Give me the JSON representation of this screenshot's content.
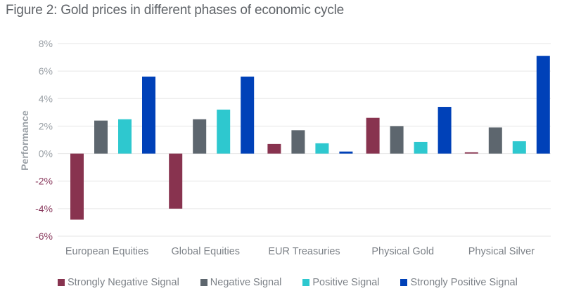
{
  "chart_data": {
    "type": "bar",
    "title": "Figure 2: Gold prices in different phases of economic cycle",
    "xlabel": "",
    "ylabel": "Performance",
    "ylim": [
      -6,
      8
    ],
    "yticks": [
      8,
      6,
      4,
      2,
      0,
      -2,
      -4,
      -6
    ],
    "ytick_labels": [
      "8%",
      "6%",
      "4%",
      "2%",
      "0%",
      "-2%",
      "-4%",
      "-6%"
    ],
    "grid": true,
    "legend_position": "bottom",
    "categories": [
      "European Equities",
      "Global Equities",
      "EUR Treasuries",
      "Physical Gold",
      "Physical Silver"
    ],
    "series": [
      {
        "name": "Strongly Negative Signal",
        "color": "#88334f",
        "values": [
          -4.8,
          -4.0,
          0.7,
          2.6,
          0.1
        ]
      },
      {
        "name": "Negative Signal",
        "color": "#5d666e",
        "values": [
          2.4,
          2.5,
          1.7,
          2.0,
          1.9
        ]
      },
      {
        "name": "Positive Signal",
        "color": "#2ec8cf",
        "values": [
          2.5,
          3.2,
          0.75,
          0.85,
          0.9
        ]
      },
      {
        "name": "Strongly Positive Signal",
        "color": "#0041b8",
        "values": [
          5.6,
          5.6,
          0.15,
          3.4,
          7.1
        ]
      }
    ]
  },
  "colors": {
    "negative_tick": "#8a3a5e",
    "positive_tick": "#9aa0a6",
    "grid": "#e6e6e6"
  }
}
